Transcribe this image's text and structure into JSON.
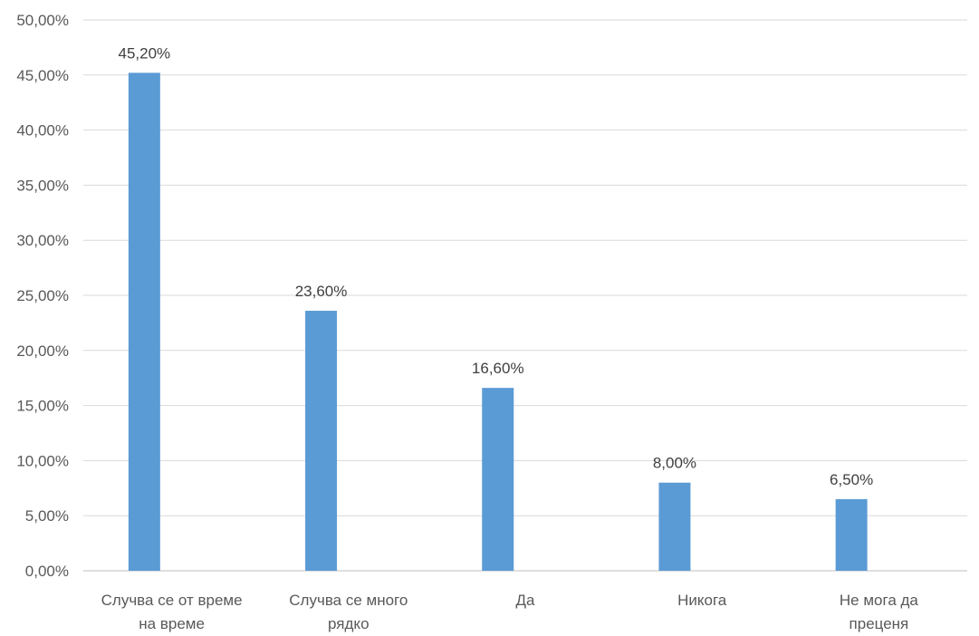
{
  "chart_data": {
    "type": "bar",
    "categories": [
      [
        "Случва се от време",
        "на време"
      ],
      [
        "Случва се много",
        "рядко"
      ],
      [
        "Да"
      ],
      [
        "Никога"
      ],
      [
        "Не мога да",
        "преценя"
      ]
    ],
    "values": [
      45.2,
      23.6,
      16.6,
      8.0,
      6.5
    ],
    "data_labels": [
      "45,20%",
      "23,60%",
      "16,60%",
      "8,00%",
      "6,50%"
    ],
    "y_ticks": [
      "0,00%",
      "5,00%",
      "10,00%",
      "15,00%",
      "20,00%",
      "25,00%",
      "30,00%",
      "35,00%",
      "40,00%",
      "45,00%",
      "50,00%"
    ],
    "ylim": [
      0,
      50
    ],
    "grid": true,
    "legend": "none",
    "colors": {
      "bar": "#5b9bd5",
      "grid": "#d9d9d9",
      "axis": "#bfbfbf"
    }
  }
}
